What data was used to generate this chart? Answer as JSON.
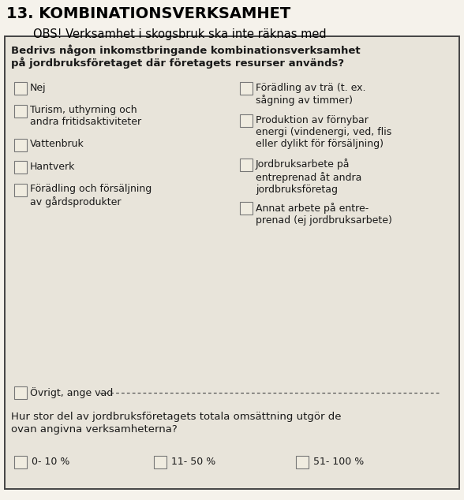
{
  "title": "13. KOMBINATIONSVERKSAMHET",
  "subtitle": "OBS! Verksamhet i skogsbruk ska inte räknas med",
  "outer_bg": "#f5f2eb",
  "box_bg": "#e8e4da",
  "border_color": "#444444",
  "title_color": "#000000",
  "question1_line1": "Bedrivs någon inkomstbringande kombinationsverksamhet",
  "question1_line2": "på jordbruksföretaget där företagets resurser används?",
  "left_items": [
    "Nej",
    "Turism, uthyrning och\nandra fritidsaktiviteter",
    "Vattenbruk",
    "Hantverk",
    "Förädling och försäljning\nav gårdsprodukter"
  ],
  "right_items": [
    "Förädling av trä (t. ex.\nsågning av timmer)",
    "Produktion av förnybar\nenergi (vindenergi, ved, flis\neller dylikt för försäljning)",
    "Jordbruksarbete på\nentreprenad åt andra\njordbruksföretag",
    "Annat arbete på entre-\nprenad (ej jordbruksarbete)"
  ],
  "ovrigt_label": "Övrigt, ange vad",
  "question2_line1": "Hur stor del av jordbruksföretagets totala omsättning utgör de",
  "question2_line2": "ovan angivna verksamheterna?",
  "bottom_items": [
    "0- 10 %",
    "11- 50 %",
    "51- 100 %"
  ],
  "checkbox_color": "#f0ece0",
  "checkbox_border": "#777777",
  "text_color": "#1a1a1a",
  "font_size": 9.0,
  "title_font_size": 14.0,
  "subtitle_font_size": 10.5
}
